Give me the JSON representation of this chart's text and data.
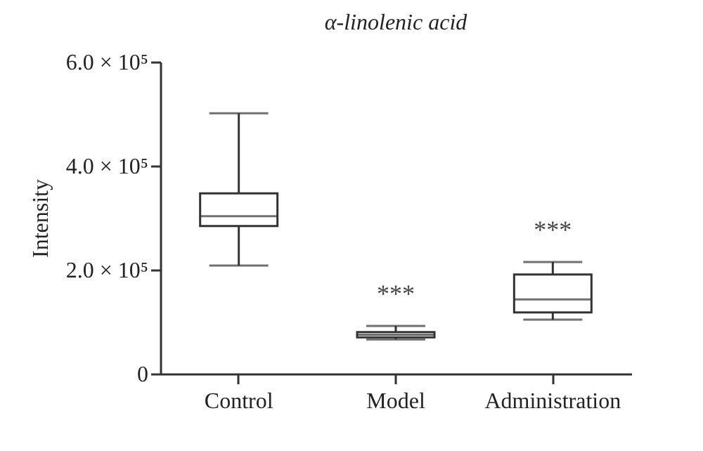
{
  "chart_data": {
    "type": "box",
    "title": "α-linolenic acid",
    "ylabel": "Intensity",
    "categories": [
      "Control",
      "Model",
      "Administration"
    ],
    "boxes": [
      {
        "low": 208000,
        "q1": 284000,
        "median": 303000,
        "q3": 347000,
        "high": 501000
      },
      {
        "low": 66000,
        "q1": 70000,
        "median": 75000,
        "q3": 80000,
        "high": 92000
      },
      {
        "low": 104000,
        "q1": 118000,
        "median": 143000,
        "q3": 191000,
        "high": 215000
      }
    ],
    "color": "#333333",
    "ylim": [
      0,
      600000
    ],
    "yticks": [
      0,
      {
        "value": 200000,
        "label": "2.0 × 10⁵"
      },
      {
        "value": 400000,
        "label": "4.0 × 10⁵"
      },
      {
        "value": 600000,
        "label": "6.0 × 10⁵"
      }
    ],
    "annotations": [
      "***",
      "***"
    ],
    "grid": false
  }
}
